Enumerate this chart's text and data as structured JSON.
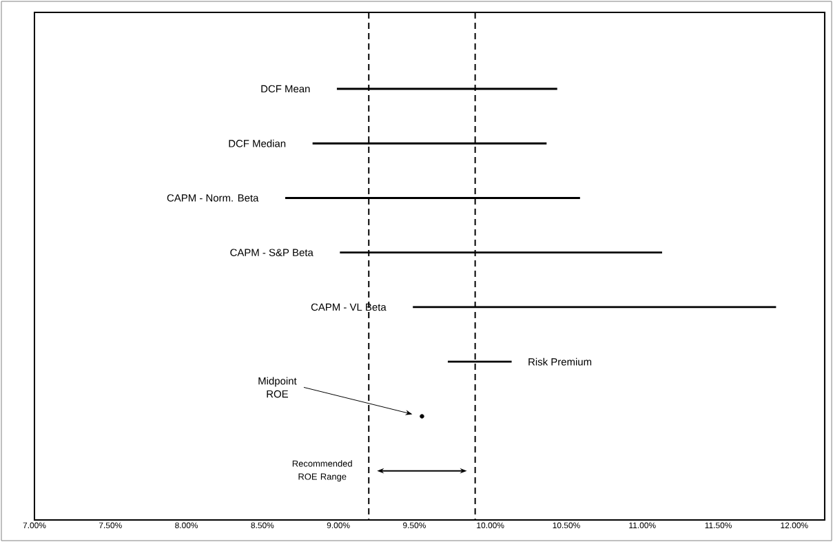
{
  "chart_data": {
    "type": "bar",
    "orientation": "horizontal",
    "categories": [
      "DCF Mean",
      "DCF Median",
      "CAPM - Norm. Beta",
      "CAPM - S&P Beta",
      "CAPM - VL Beta",
      "Risk Premium",
      null
    ],
    "series": [
      {
        "color": "#000000",
        "base": [
          8.99,
          8.83,
          8.65,
          9.01,
          9.49,
          9.72,
          null
        ],
        "values": [
          1.45,
          1.54,
          1.94,
          2.12,
          2.39,
          0.42,
          null
        ]
      },
      {
        "type": "scatter",
        "color": "#000000",
        "values": [
          null,
          null,
          null,
          null,
          null,
          null,
          9.55
        ]
      }
    ],
    "xlim": [
      7,
      12.2
    ],
    "xticks": [
      {
        "value": 7,
        "label": "7.00%"
      },
      {
        "value": 7.5,
        "label": "7.50%"
      },
      {
        "value": 8,
        "label": "8.00%"
      },
      {
        "value": 8.5,
        "label": "8.50%"
      },
      {
        "value": 9,
        "label": "9.00%"
      },
      {
        "value": 9.5,
        "label": "9.50%"
      },
      {
        "value": 10,
        "label": "10.00%"
      },
      {
        "value": 10.5,
        "label": "10.50%"
      },
      {
        "value": 11,
        "label": "11.00%"
      },
      {
        "value": 11.5,
        "label": "11.50%"
      },
      {
        "value": 12,
        "label": "12.00%"
      }
    ],
    "ref_lines": [
      {
        "axis": "x",
        "value": 9.2,
        "line_style": "dashed",
        "color": "#000000"
      },
      {
        "axis": "x",
        "value": 9.9,
        "line_style": "dashed",
        "color": "#000000"
      }
    ],
    "annotations": [
      "Midpoint ROE",
      "Recommended ROE Range"
    ],
    "marker": "circle",
    "grid": false
  }
}
